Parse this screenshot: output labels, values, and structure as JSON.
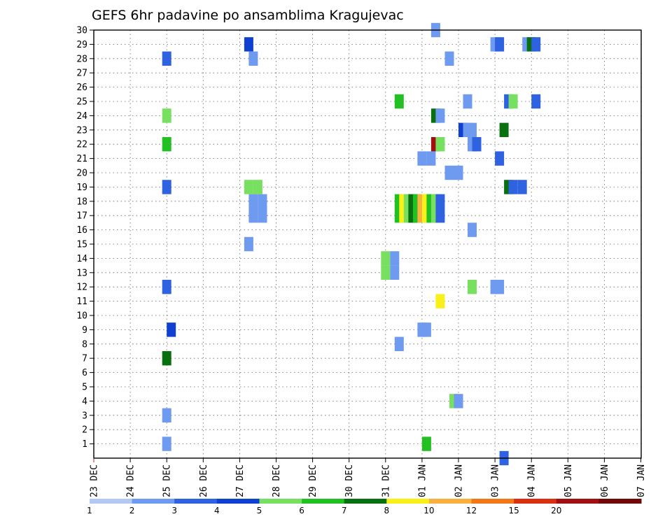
{
  "chart_data": {
    "type": "heatmap",
    "title": "GEFS 6hr padavine po ansamblima Kragujevac",
    "x_tick_labels": [
      "23 DEC",
      "24 DEC",
      "25 DEC",
      "26 DEC",
      "27 DEC",
      "28 DEC",
      "29 DEC",
      "30 DEC",
      "31 DEC",
      "01 JAN",
      "02 JAN",
      "03 JAN",
      "04 JAN",
      "05 JAN",
      "06 JAN",
      "07 JAN"
    ],
    "y_range": [
      0,
      30
    ],
    "y_tick_labels": [
      1,
      2,
      3,
      4,
      5,
      6,
      7,
      8,
      9,
      10,
      11,
      12,
      13,
      14,
      15,
      16,
      17,
      18,
      19,
      20,
      21,
      22,
      23,
      24,
      25,
      26,
      27,
      28,
      29,
      30
    ],
    "grid": true,
    "colorbar": {
      "labels": [
        "1",
        "2",
        "3",
        "4",
        "5",
        "6",
        "7",
        "8",
        "10",
        "12",
        "15",
        "20"
      ],
      "colors": [
        "#b4c8f4",
        "#6e9af0",
        "#2e62e0",
        "#1040d0",
        "#78e060",
        "#22c022",
        "#087010",
        "#f8f018",
        "#f8b040",
        "#f07818",
        "#d83010",
        "#a01010",
        "#700808"
      ]
    },
    "points": [
      {
        "step": 7.5,
        "member": 1,
        "level": 1
      },
      {
        "step": 7.5,
        "member": 3,
        "level": 1
      },
      {
        "step": 7.5,
        "member": 7,
        "level": 6
      },
      {
        "step": 8,
        "member": 9,
        "level": 3
      },
      {
        "step": 7.5,
        "member": 12,
        "level": 2
      },
      {
        "step": 7.5,
        "member": 19,
        "level": 2
      },
      {
        "step": 7.5,
        "member": 22,
        "level": 5
      },
      {
        "step": 7.5,
        "member": 24,
        "level": 4
      },
      {
        "step": 7.5,
        "member": 28,
        "level": 2
      },
      {
        "step": 16.5,
        "member": 15,
        "level": 1
      },
      {
        "step": 17,
        "member": 17,
        "level": 1
      },
      {
        "step": 18,
        "member": 17,
        "level": 1
      },
      {
        "step": 17,
        "member": 18,
        "level": 1
      },
      {
        "step": 18,
        "member": 18,
        "level": 1
      },
      {
        "step": 16.5,
        "member": 19,
        "level": 4
      },
      {
        "step": 17.5,
        "member": 19,
        "level": 4
      },
      {
        "step": 16.5,
        "member": 29,
        "level": 3
      },
      {
        "step": 17,
        "member": 28,
        "level": 1
      },
      {
        "step": 31.5,
        "member": 13,
        "level": 4
      },
      {
        "step": 31.5,
        "member": 14,
        "level": 4
      },
      {
        "step": 32.5,
        "member": 13,
        "level": 1
      },
      {
        "step": 32.5,
        "member": 14,
        "level": 1
      },
      {
        "step": 33,
        "member": 8,
        "level": 1
      },
      {
        "step": 33,
        "member": 25,
        "level": 5
      },
      {
        "step": 35.5,
        "member": 9,
        "level": 1
      },
      {
        "step": 36,
        "member": 9,
        "level": 1
      },
      {
        "step": 36,
        "member": 1,
        "level": 5
      },
      {
        "step": 35.5,
        "member": 21,
        "level": 1
      },
      {
        "step": 36.5,
        "member": 21,
        "level": 1
      },
      {
        "step": 33,
        "member": 17,
        "level": 5
      },
      {
        "step": 33,
        "member": 18,
        "level": 5
      },
      {
        "step": 33.5,
        "member": 17,
        "level": 7
      },
      {
        "step": 33.5,
        "member": 18,
        "level": 7
      },
      {
        "step": 34,
        "member": 17,
        "level": 4
      },
      {
        "step": 34,
        "member": 18,
        "level": 4
      },
      {
        "step": 34.5,
        "member": 17,
        "level": 6
      },
      {
        "step": 34.5,
        "member": 18,
        "level": 6
      },
      {
        "step": 35,
        "member": 17,
        "level": 5
      },
      {
        "step": 35,
        "member": 18,
        "level": 5
      },
      {
        "step": 35.5,
        "member": 17,
        "level": 8
      },
      {
        "step": 35.5,
        "member": 18,
        "level": 8
      },
      {
        "step": 36,
        "member": 17,
        "level": 7
      },
      {
        "step": 36,
        "member": 18,
        "level": 7
      },
      {
        "step": 36.5,
        "member": 17,
        "level": 5
      },
      {
        "step": 36.5,
        "member": 18,
        "level": 5
      },
      {
        "step": 37,
        "member": 17,
        "level": 4
      },
      {
        "step": 37,
        "member": 18,
        "level": 4
      },
      {
        "step": 37.5,
        "member": 17,
        "level": 2
      },
      {
        "step": 37.5,
        "member": 18,
        "level": 2
      },
      {
        "step": 37.5,
        "member": 11,
        "level": 7
      },
      {
        "step": 37,
        "member": 22,
        "level": 11
      },
      {
        "step": 37.5,
        "member": 22,
        "level": 4
      },
      {
        "step": 37,
        "member": 24,
        "level": 6
      },
      {
        "step": 37.5,
        "member": 24,
        "level": 1
      },
      {
        "step": 37,
        "member": 30,
        "level": 1
      },
      {
        "step": 38.5,
        "member": 20,
        "level": 1
      },
      {
        "step": 38.5,
        "member": 28,
        "level": 1
      },
      {
        "step": 39,
        "member": 4,
        "level": 4
      },
      {
        "step": 39.5,
        "member": 4,
        "level": 1
      },
      {
        "step": 39.5,
        "member": 20,
        "level": 1
      },
      {
        "step": 40,
        "member": 23,
        "level": 3
      },
      {
        "step": 40.5,
        "member": 23,
        "level": 1
      },
      {
        "step": 41,
        "member": 23,
        "level": 1
      },
      {
        "step": 41,
        "member": 22,
        "level": 1
      },
      {
        "step": 41.5,
        "member": 22,
        "level": 2
      },
      {
        "step": 40.5,
        "member": 25,
        "level": 1
      },
      {
        "step": 41,
        "member": 16,
        "level": 1
      },
      {
        "step": 41,
        "member": 12,
        "level": 4
      },
      {
        "step": 43.5,
        "member": 12,
        "level": 1
      },
      {
        "step": 44,
        "member": 12,
        "level": 1
      },
      {
        "step": 43.5,
        "member": 29,
        "level": 1
      },
      {
        "step": 44,
        "member": 29,
        "level": 2
      },
      {
        "step": 44,
        "member": 21,
        "level": 2
      },
      {
        "step": 44.5,
        "member": 0,
        "level": 2
      },
      {
        "step": 44.5,
        "member": 23,
        "level": 6
      },
      {
        "step": 45,
        "member": 19,
        "level": 6
      },
      {
        "step": 45.5,
        "member": 19,
        "level": 2
      },
      {
        "step": 45,
        "member": 25,
        "level": 2
      },
      {
        "step": 45.5,
        "member": 25,
        "level": 4
      },
      {
        "step": 46.5,
        "member": 19,
        "level": 2
      },
      {
        "step": 47,
        "member": 29,
        "level": 1
      },
      {
        "step": 47.5,
        "member": 29,
        "level": 6
      },
      {
        "step": 48,
        "member": 29,
        "level": 2
      },
      {
        "step": 48,
        "member": 25,
        "level": 2
      }
    ]
  }
}
